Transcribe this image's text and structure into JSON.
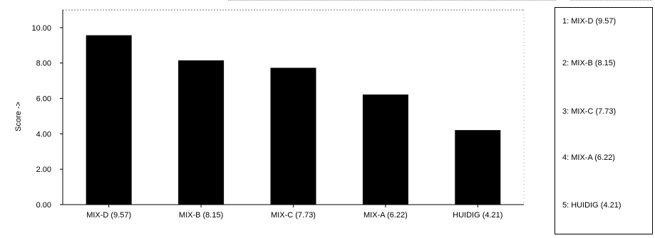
{
  "chart_data": {
    "type": "bar",
    "title": "",
    "xlabel": "",
    "ylabel": "Score ->",
    "ylim": [
      0,
      11
    ],
    "yticks": [
      "0.00",
      "2.00",
      "4.00",
      "6.00",
      "8.00",
      "10.00"
    ],
    "yticks_values": [
      0,
      2,
      4,
      6,
      8,
      10
    ],
    "categories": [
      "MIX-D (9.57)",
      "MIX-B (8.15)",
      "MIX-C (7.73)",
      "MIX-A (6.22)",
      "HUIDIG (4.21)"
    ],
    "values": [
      9.57,
      8.15,
      7.73,
      6.22,
      4.21
    ],
    "bar_color": "#000000",
    "grid": false,
    "legend_position": "right"
  },
  "legend": {
    "items": [
      "1: MIX-D (9.57)",
      "2: MIX-B (8.15)",
      "3: MIX-C (7.73)",
      "4: MIX-A (6.22)",
      "5: HUIDIG (4.21)"
    ]
  }
}
